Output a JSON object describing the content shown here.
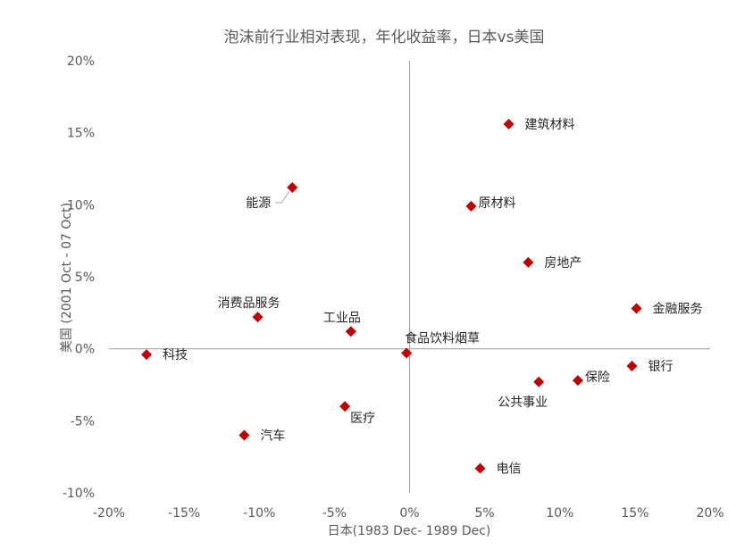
{
  "chart_data": {
    "type": "scatter",
    "title": "泡沫前行业相对表现，年化收益率，日本vs美国",
    "xlabel": "日本(1983 Dec- 1989 Dec)",
    "ylabel": "美国 (2001 Oct - 07 Oct)",
    "xlim": [
      -0.2,
      0.2
    ],
    "ylim": [
      -0.1,
      0.2
    ],
    "x_ticks": [
      {
        "value": -0.2,
        "label": "-20%"
      },
      {
        "value": -0.15,
        "label": "-15%"
      },
      {
        "value": -0.1,
        "label": "-10%"
      },
      {
        "value": -0.05,
        "label": "-5%"
      },
      {
        "value": 0.0,
        "label": "0%"
      },
      {
        "value": 0.05,
        "label": "5%"
      },
      {
        "value": 0.1,
        "label": "10%"
      },
      {
        "value": 0.15,
        "label": "15%"
      },
      {
        "value": 0.2,
        "label": "20%"
      }
    ],
    "y_ticks": [
      {
        "value": 0.2,
        "label": "20%"
      },
      {
        "value": 0.15,
        "label": "15%"
      },
      {
        "value": 0.1,
        "label": "10%"
      },
      {
        "value": 0.05,
        "label": "5%"
      },
      {
        "value": 0.0,
        "label": "0%"
      },
      {
        "value": -0.05,
        "label": "-5%"
      },
      {
        "value": -0.1,
        "label": "-10%"
      }
    ],
    "marker_color": "#C00000",
    "axis_color": "#A6A6A6",
    "grid": false,
    "points": [
      {
        "label": "建筑材料",
        "x": 0.066,
        "y": 0.156,
        "pos": "right"
      },
      {
        "label": "能源",
        "x": -0.078,
        "y": 0.112,
        "pos": "leader-left"
      },
      {
        "label": "原材料",
        "x": 0.041,
        "y": 0.099,
        "pos": "right-tight"
      },
      {
        "label": "房地产",
        "x": 0.079,
        "y": 0.06,
        "pos": "right"
      },
      {
        "label": "金融服务",
        "x": 0.151,
        "y": 0.028,
        "pos": "right"
      },
      {
        "label": "消费品服务",
        "x": -0.101,
        "y": 0.022,
        "pos": "above"
      },
      {
        "label": "工业品",
        "x": -0.039,
        "y": 0.012,
        "pos": "above"
      },
      {
        "label": "食品饮料烟草",
        "x": -0.002,
        "y": -0.003,
        "pos": "above-right"
      },
      {
        "label": "科技",
        "x": -0.175,
        "y": -0.004,
        "pos": "right"
      },
      {
        "label": "银行",
        "x": 0.148,
        "y": -0.012,
        "pos": "right"
      },
      {
        "label": "保险",
        "x": 0.112,
        "y": -0.022,
        "pos": "right-tight"
      },
      {
        "label": "公共事业",
        "x": 0.086,
        "y": -0.023,
        "pos": "below"
      },
      {
        "label": "医疗",
        "x": -0.043,
        "y": -0.04,
        "pos": "below-right"
      },
      {
        "label": "汽车",
        "x": -0.11,
        "y": -0.06,
        "pos": "right"
      },
      {
        "label": "电信",
        "x": 0.047,
        "y": -0.083,
        "pos": "right"
      }
    ]
  }
}
